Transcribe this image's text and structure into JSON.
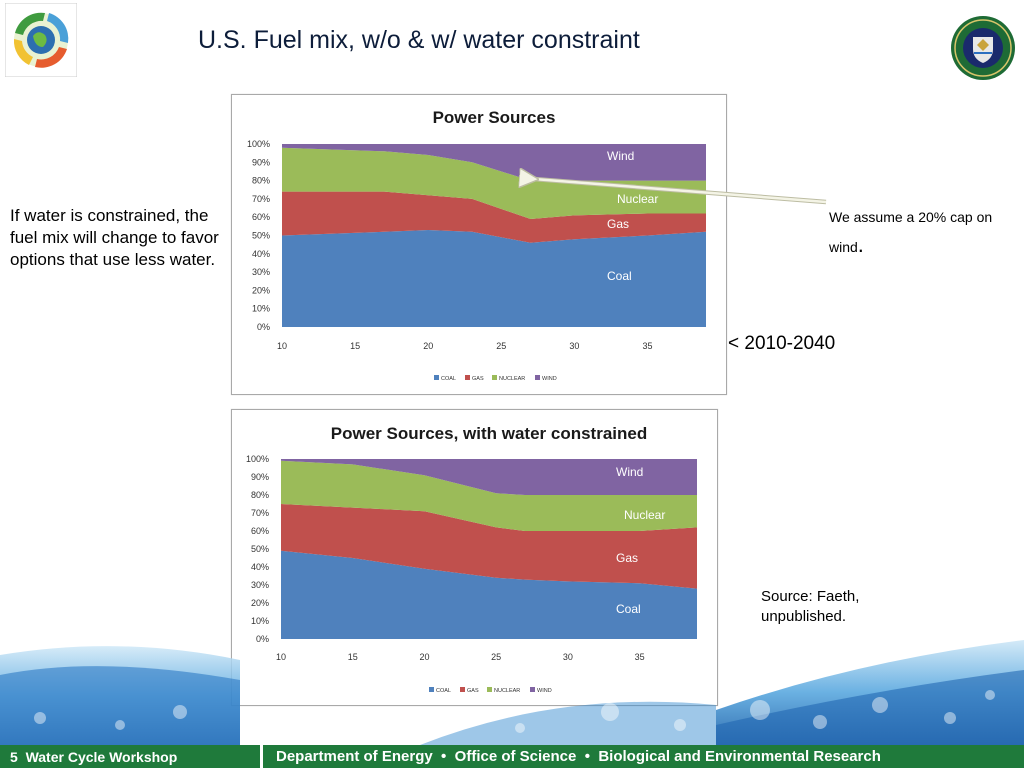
{
  "slide": {
    "title": "U.S. Fuel mix, w/o & w/ water constraint",
    "left_text": "If water is constrained, the fuel mix will change to favor options that use less water.",
    "note_text": "We assume a 20% cap on wind",
    "note_dot": ".",
    "range_text": "< 2010-2040",
    "source_text": "Source: Faeth, unpublished."
  },
  "footer": {
    "page_number": "5",
    "workshop": "Water Cycle Workshop",
    "department": "Department of Energy",
    "office": "Office of Science",
    "research": "Biological and Environmental Research",
    "separator": "•"
  },
  "icons": {
    "left_logo": "water-cycle-logo-icon",
    "right_logo": "doe-seal-icon"
  },
  "colors": {
    "coal": "#4f81bd",
    "gas": "#c0504d",
    "nuclear": "#9bbb59",
    "wind": "#8064a2",
    "footer": "#1f7a3b"
  },
  "chart_data": [
    {
      "type": "area",
      "stacked": true,
      "title": "Power Sources",
      "x": [
        10,
        17,
        20,
        23,
        27,
        30,
        35,
        39
      ],
      "xticks": [
        "10",
        "15",
        "20",
        "25",
        "30",
        "35"
      ],
      "yticks": [
        "0%",
        "10%",
        "20%",
        "30%",
        "40%",
        "50%",
        "60%",
        "70%",
        "80%",
        "90%",
        "100%"
      ],
      "xlim": [
        10,
        39
      ],
      "ylim": [
        0,
        100
      ],
      "legend": [
        "COAL",
        "GAS",
        "NUCLEAR",
        "WIND"
      ],
      "legend_position": "bottom",
      "series": [
        {
          "name": "COAL",
          "values": [
            50,
            52,
            53,
            52,
            46,
            48,
            50,
            52
          ]
        },
        {
          "name": "GAS",
          "values": [
            24,
            22,
            19,
            18,
            13,
            13,
            12,
            10
          ]
        },
        {
          "name": "NUCLEAR",
          "values": [
            24,
            22,
            22,
            20,
            21,
            19,
            18,
            18
          ]
        },
        {
          "name": "WIND",
          "values": [
            2,
            4,
            6,
            10,
            20,
            20,
            20,
            20
          ]
        }
      ],
      "labels": [
        "Wind",
        "Nuclear",
        "Gas",
        "Coal"
      ]
    },
    {
      "type": "area",
      "stacked": true,
      "title": "Power Sources, with water constrained",
      "x": [
        10,
        15,
        20,
        25,
        27,
        30,
        35,
        39
      ],
      "xticks": [
        "10",
        "15",
        "20",
        "25",
        "30",
        "35"
      ],
      "yticks": [
        "0%",
        "10%",
        "20%",
        "30%",
        "40%",
        "50%",
        "60%",
        "70%",
        "80%",
        "90%",
        "100%"
      ],
      "xlim": [
        10,
        39
      ],
      "ylim": [
        0,
        100
      ],
      "legend": [
        "COAL",
        "GAS",
        "NUCLEAR",
        "WIND"
      ],
      "legend_position": "bottom",
      "series": [
        {
          "name": "COAL",
          "values": [
            49,
            45,
            39,
            34,
            33,
            32,
            31,
            28
          ]
        },
        {
          "name": "GAS",
          "values": [
            26,
            28,
            32,
            28,
            27,
            28,
            29,
            34
          ]
        },
        {
          "name": "NUCLEAR",
          "values": [
            24,
            24,
            20,
            19,
            20,
            20,
            20,
            18
          ]
        },
        {
          "name": "WIND",
          "values": [
            1,
            3,
            9,
            19,
            20,
            20,
            20,
            20
          ]
        }
      ],
      "labels": [
        "Wind",
        "Nuclear",
        "Gas",
        "Coal"
      ]
    }
  ]
}
